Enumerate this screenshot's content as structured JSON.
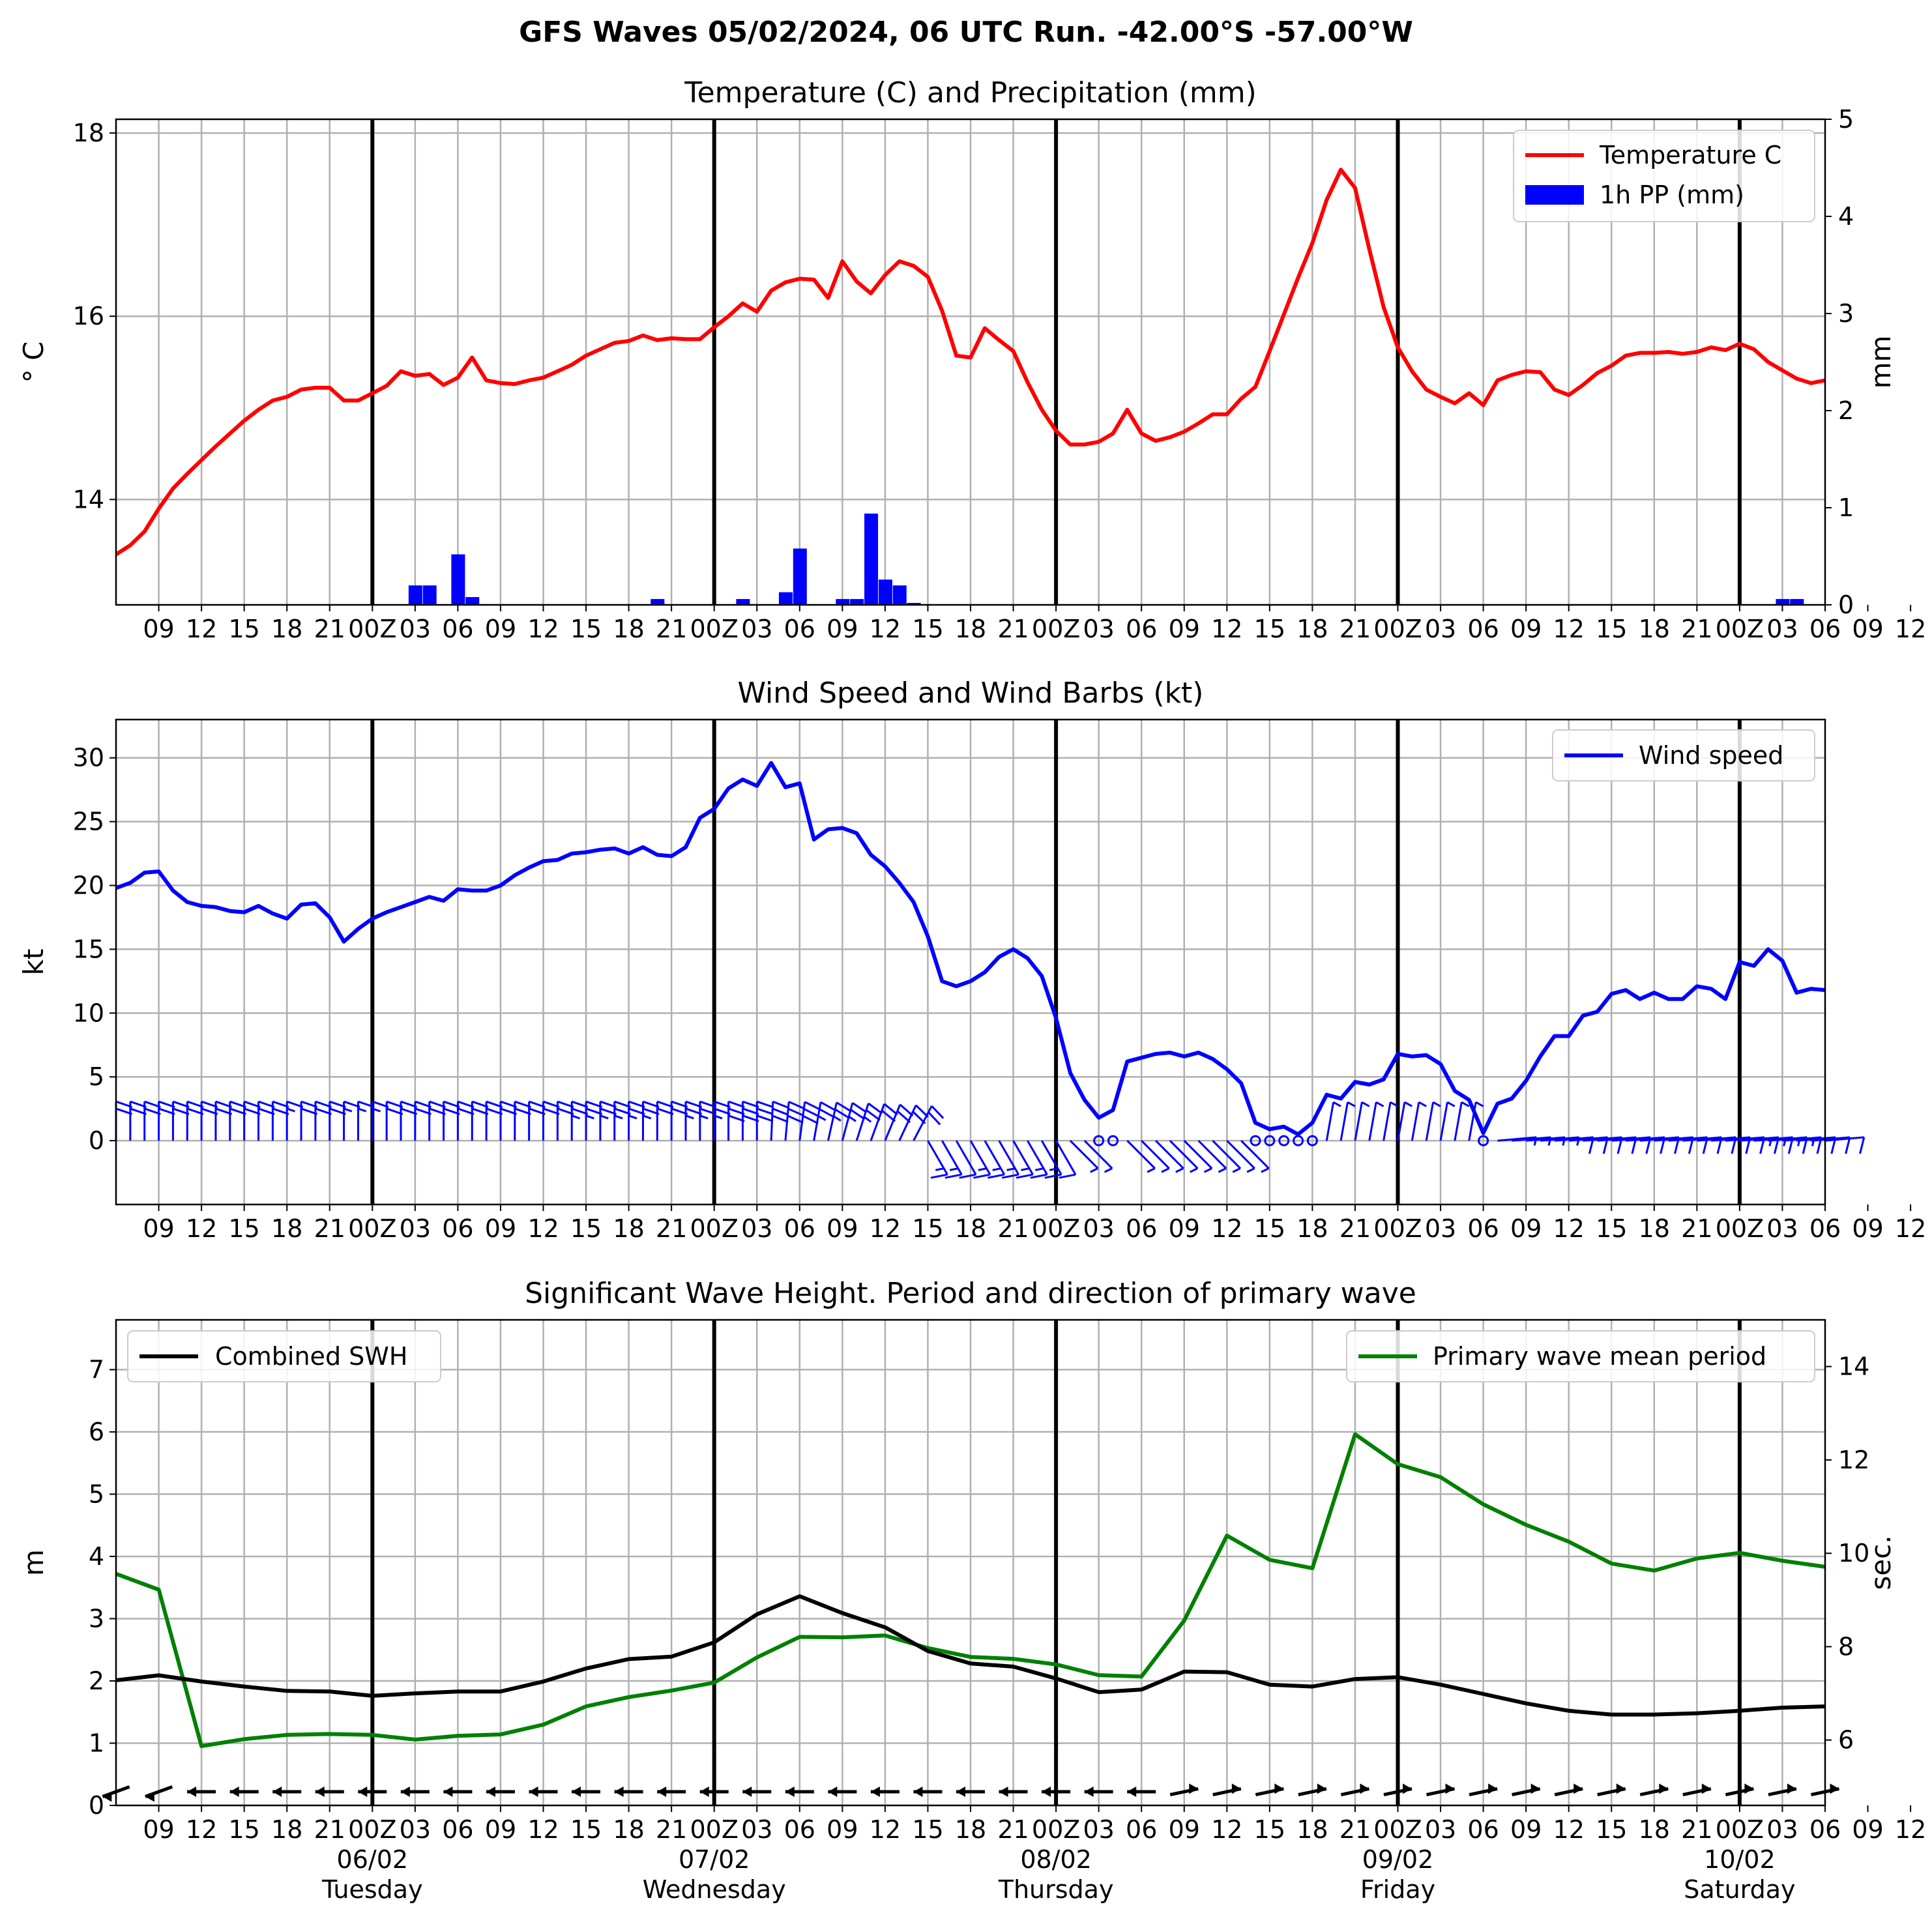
{
  "suptitle": "GFS Waves 05/02/2024, 06 UTC Run. -42.00°S -57.00°W",
  "chart_data": [
    {
      "type": "line",
      "title": "Temperature (C) and Precipitation (mm)",
      "ylabel": "° C",
      "ylabel_right": "mm",
      "ylim": [
        12.85,
        18.15
      ],
      "y2lim": [
        0,
        5
      ],
      "yticks": [
        "14",
        "16",
        "18"
      ],
      "y2ticks": [
        "0",
        "1",
        "2",
        "3",
        "4",
        "5"
      ],
      "grid": true,
      "legend_position": "top-right",
      "legend": [
        "Temperature C",
        "1h PP (mm)"
      ],
      "x_tick_labels": [
        "09",
        "12",
        "15",
        "18",
        "21",
        "00Z",
        "03",
        "06",
        "09",
        "12",
        "15",
        "18",
        "21",
        "00Z",
        "03",
        "06",
        "09",
        "12",
        "15",
        "18",
        "21",
        "00Z",
        "03",
        "06",
        "09",
        "12",
        "15",
        "18",
        "21",
        "00Z",
        "03",
        "06",
        "09",
        "12",
        "15",
        "18",
        "21",
        "00Z",
        "03",
        "06",
        "09",
        "12",
        "15",
        "18",
        "21",
        "00Z",
        "03",
        "06"
      ],
      "series": [
        {
          "name": "Temperature C",
          "color": "#ff0000",
          "x_hours": [
            0,
            1,
            2,
            3,
            4,
            5,
            6,
            7,
            8,
            9,
            10,
            11,
            12,
            13,
            14,
            15,
            16,
            17,
            18,
            19,
            20,
            21,
            22,
            23,
            24,
            25,
            26,
            27,
            28,
            29,
            30,
            31,
            32,
            33,
            34,
            35,
            36,
            37,
            38,
            39,
            40,
            41,
            42,
            43,
            44,
            45,
            46,
            47,
            48,
            49,
            50,
            51,
            52,
            53,
            54,
            55,
            56,
            57,
            58,
            59,
            60,
            61,
            62,
            63,
            64,
            65,
            66,
            67,
            68,
            69,
            70,
            71,
            72,
            73,
            74,
            75,
            76,
            77,
            78,
            79,
            80,
            81,
            82,
            83,
            84,
            85,
            86,
            87,
            88,
            89,
            90,
            91,
            92,
            93,
            94,
            95,
            96,
            97,
            98,
            99,
            100,
            101,
            102,
            103,
            104,
            105,
            106,
            107,
            108,
            109,
            110,
            111,
            112,
            113,
            114,
            115,
            116,
            117,
            118,
            119,
            120
          ],
          "values": [
            13.4,
            13.5,
            13.65,
            13.9,
            14.12,
            14.28,
            14.43,
            14.58,
            14.72,
            14.86,
            14.98,
            15.08,
            15.12,
            15.2,
            15.22,
            15.22,
            15.08,
            15.08,
            15.16,
            15.24,
            15.4,
            15.35,
            15.37,
            15.25,
            15.33,
            15.55,
            15.3,
            15.27,
            15.26,
            15.3,
            15.33,
            15.4,
            15.47,
            15.57,
            15.64,
            15.71,
            15.73,
            15.79,
            15.74,
            15.76,
            15.75,
            15.75,
            15.88,
            16.0,
            16.14,
            16.05,
            16.28,
            16.37,
            16.41,
            16.4,
            16.2,
            16.6,
            16.38,
            16.25,
            16.45,
            16.6,
            16.55,
            16.43,
            16.06,
            15.57,
            15.55,
            15.87,
            15.74,
            15.62,
            15.28,
            14.98,
            14.75,
            14.6,
            14.6,
            14.63,
            14.72,
            14.98,
            14.72,
            14.64,
            14.68,
            14.74,
            14.83,
            14.93,
            14.93,
            15.1,
            15.23,
            15.62,
            16.02,
            16.42,
            16.8,
            17.27,
            17.6,
            17.4,
            16.73,
            16.1,
            15.66,
            15.4,
            15.2,
            15.12,
            15.05,
            15.16,
            15.03,
            15.3,
            15.36,
            15.4,
            15.39,
            15.2,
            15.14,
            15.25,
            15.38,
            15.46,
            15.57,
            15.6,
            15.6,
            15.61,
            15.59,
            15.61,
            15.66,
            15.63,
            15.7,
            15.64,
            15.5,
            15.41,
            15.32,
            15.27,
            15.3
          ]
        },
        {
          "name": "1h PP (mm)",
          "type": "bar",
          "color": "#0000ff",
          "x_hours": [
            21,
            22,
            24,
            25,
            38,
            44,
            47,
            48,
            51,
            52,
            53,
            54,
            55,
            56,
            117,
            118
          ],
          "values": [
            0.2,
            0.2,
            0.52,
            0.08,
            0.06,
            0.06,
            0.13,
            0.58,
            0.06,
            0.06,
            0.94,
            0.26,
            0.2,
            0.02,
            0.06,
            0.06
          ]
        }
      ]
    },
    {
      "type": "line",
      "title": "Wind Speed and Wind Barbs (kt)",
      "ylabel": "kt",
      "ylim": [
        -5,
        33
      ],
      "yticks": [
        "0",
        "5",
        "10",
        "15",
        "20",
        "25",
        "30"
      ],
      "grid": true,
      "legend_position": "top-right",
      "legend": [
        "Wind speed"
      ],
      "x_tick_labels": [
        "09",
        "12",
        "15",
        "18",
        "21",
        "00Z",
        "03",
        "06",
        "09",
        "12",
        "15",
        "18",
        "21",
        "00Z",
        "03",
        "06",
        "09",
        "12",
        "15",
        "18",
        "21",
        "00Z",
        "03",
        "06",
        "09",
        "12",
        "15",
        "18",
        "21",
        "00Z",
        "03",
        "06",
        "09",
        "12",
        "15",
        "18",
        "21",
        "00Z",
        "03",
        "06",
        "09",
        "12",
        "15",
        "18",
        "21",
        "00Z",
        "03",
        "06"
      ],
      "series": [
        {
          "name": "Wind speed",
          "color": "#0000ff",
          "x_hours": [
            0,
            1,
            2,
            3,
            4,
            5,
            6,
            7,
            8,
            9,
            10,
            11,
            12,
            13,
            14,
            15,
            16,
            17,
            18,
            19,
            20,
            21,
            22,
            23,
            24,
            25,
            26,
            27,
            28,
            29,
            30,
            31,
            32,
            33,
            34,
            35,
            36,
            37,
            38,
            39,
            40,
            41,
            42,
            43,
            44,
            45,
            46,
            47,
            48,
            49,
            50,
            51,
            52,
            53,
            54,
            55,
            56,
            57,
            58,
            59,
            60,
            61,
            62,
            63,
            64,
            65,
            66,
            67,
            68,
            69,
            70,
            71,
            72,
            73,
            74,
            75,
            76,
            77,
            78,
            79,
            80,
            81,
            82,
            83,
            84,
            85,
            86,
            87,
            88,
            89,
            90,
            91,
            92,
            93,
            94,
            95,
            96,
            97,
            98,
            99,
            100,
            101,
            102,
            103,
            104,
            105,
            106,
            107,
            108,
            109,
            110,
            111,
            112,
            113,
            114,
            115,
            116,
            117,
            118,
            119,
            120
          ],
          "values": [
            19.8,
            20.2,
            21.0,
            21.1,
            19.6,
            18.7,
            18.4,
            18.3,
            18.0,
            17.9,
            18.4,
            17.8,
            17.4,
            18.5,
            18.6,
            17.5,
            15.6,
            16.6,
            17.4,
            17.9,
            18.3,
            18.7,
            19.1,
            18.8,
            19.7,
            19.6,
            19.6,
            20.0,
            20.8,
            21.4,
            21.9,
            22.0,
            22.5,
            22.6,
            22.8,
            22.9,
            22.5,
            23.0,
            22.4,
            22.3,
            23.0,
            25.3,
            26.0,
            27.6,
            28.3,
            27.8,
            29.6,
            27.7,
            28.0,
            23.6,
            24.4,
            24.5,
            24.1,
            22.4,
            21.5,
            20.2,
            18.7,
            16.0,
            12.5,
            12.1,
            12.5,
            13.2,
            14.4,
            15.0,
            14.3,
            12.9,
            9.6,
            5.3,
            3.2,
            1.8,
            2.4,
            6.2,
            6.5,
            6.8,
            6.9,
            6.6,
            6.9,
            6.4,
            5.6,
            4.5,
            1.4,
            0.9,
            1.1,
            0.5,
            1.4,
            3.6,
            3.3,
            4.6,
            4.4,
            4.8,
            6.8,
            6.6,
            6.7,
            6.0,
            3.9,
            3.2,
            0.6,
            2.9,
            3.3,
            4.7,
            6.6,
            8.2,
            8.2,
            9.8,
            10.1,
            11.5,
            11.8,
            11.1,
            11.6,
            11.1,
            11.1,
            12.1,
            11.9,
            11.1,
            14.0,
            13.7,
            15.0,
            14.1,
            11.6,
            11.9,
            11.8
          ]
        }
      ]
    },
    {
      "type": "line",
      "title": "Significant Wave Height. Period and direction of primary wave",
      "ylabel": "m",
      "ylabel_right": "sec.",
      "ylim": [
        0,
        7.8
      ],
      "y2lim": [
        4.6,
        15.0
      ],
      "yticks": [
        "0",
        "1",
        "2",
        "3",
        "4",
        "5",
        "6",
        "7"
      ],
      "y2ticks": [
        "6",
        "8",
        "10",
        "12",
        "14"
      ],
      "grid": true,
      "legend": [
        "Combined SWH",
        "Primary wave mean period"
      ],
      "legend_position": "top-left and top-right",
      "x_tick_labels": [
        "09",
        "12",
        "15",
        "18",
        "21",
        "00Z",
        "03",
        "06",
        "09",
        "12",
        "15",
        "18",
        "21",
        "00Z",
        "03",
        "06",
        "09",
        "12",
        "15",
        "18",
        "21",
        "00Z",
        "03",
        "06",
        "09",
        "12",
        "15",
        "18",
        "21",
        "00Z",
        "03",
        "06",
        "09",
        "12",
        "15",
        "18",
        "21",
        "00Z",
        "03",
        "06",
        "09",
        "12",
        "15",
        "18",
        "21",
        "00Z",
        "03",
        "06"
      ],
      "date_labels": [
        {
          "date": "06/02",
          "day": "Tuesday"
        },
        {
          "date": "07/02",
          "day": "Wednesday"
        },
        {
          "date": "08/02",
          "day": "Thursday"
        },
        {
          "date": "09/02",
          "day": "Friday"
        },
        {
          "date": "10/02",
          "day": "Saturday"
        }
      ],
      "series": [
        {
          "name": "Combined SWH",
          "color": "#000000",
          "x_hours": [
            0,
            3,
            6,
            9,
            12,
            15,
            18,
            21,
            24,
            27,
            30,
            33,
            36,
            39,
            42,
            45,
            48,
            51,
            54,
            57,
            60,
            63,
            66,
            69,
            72,
            75,
            78,
            81,
            84,
            87,
            90,
            93,
            96,
            99,
            102,
            105,
            108,
            111,
            114,
            117,
            120
          ],
          "values": [
            2.01,
            2.09,
            1.99,
            1.91,
            1.84,
            1.83,
            1.76,
            1.8,
            1.83,
            1.83,
            1.99,
            2.2,
            2.35,
            2.39,
            2.62,
            3.07,
            3.36,
            3.09,
            2.86,
            2.48,
            2.28,
            2.23,
            2.04,
            1.82,
            1.86,
            2.15,
            2.14,
            1.94,
            1.91,
            2.03,
            2.06,
            1.94,
            1.79,
            1.64,
            1.52,
            1.46,
            1.46,
            1.48,
            1.52,
            1.57,
            1.59
          ]
        },
        {
          "name": "Primary wave mean period",
          "color": "#008000",
          "x_hours": [
            0,
            3,
            6,
            9,
            12,
            15,
            18,
            21,
            24,
            27,
            30,
            33,
            36,
            39,
            42,
            45,
            48,
            51,
            54,
            57,
            60,
            63,
            66,
            69,
            72,
            75,
            78,
            81,
            84,
            87,
            90,
            93,
            96,
            99,
            102,
            105,
            108,
            111,
            114,
            117,
            120
          ],
          "values": [
            9.56,
            9.22,
            5.87,
            6.02,
            6.11,
            6.13,
            6.11,
            6.01,
            6.09,
            6.12,
            6.33,
            6.72,
            6.92,
            7.06,
            7.23,
            7.77,
            8.21,
            8.2,
            8.24,
            7.97,
            7.78,
            7.74,
            7.62,
            7.39,
            7.36,
            8.56,
            10.38,
            9.86,
            9.68,
            12.55,
            11.91,
            11.63,
            11.05,
            10.61,
            10.25,
            9.78,
            9.63,
            9.89,
            10.01,
            9.84,
            9.71
          ]
        }
      ]
    }
  ]
}
